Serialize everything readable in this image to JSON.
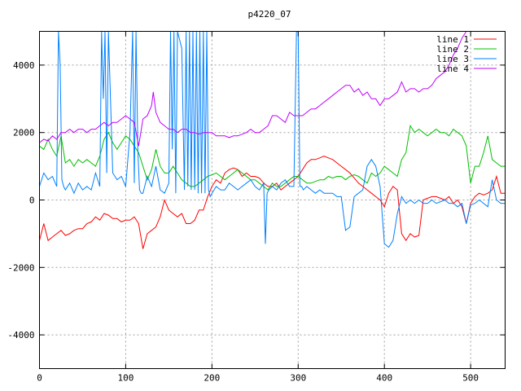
{
  "chart_data": {
    "type": "line",
    "title": "p4220_07",
    "xlim": [
      0,
      540
    ],
    "ylim": [
      -5000,
      5000
    ],
    "xticks": [
      0,
      100,
      200,
      300,
      400,
      500
    ],
    "yticks": [
      -4000,
      -2000,
      0,
      2000,
      4000
    ],
    "grid": true,
    "legend_position": "top-right",
    "series": [
      {
        "name": "line 1",
        "color": "#ff0000",
        "x": [
          0,
          5,
          10,
          15,
          20,
          25,
          30,
          35,
          40,
          45,
          50,
          55,
          60,
          65,
          70,
          75,
          80,
          85,
          90,
          95,
          100,
          105,
          110,
          115,
          120,
          125,
          130,
          135,
          140,
          145,
          150,
          155,
          160,
          165,
          170,
          175,
          180,
          185,
          190,
          195,
          200,
          205,
          210,
          215,
          220,
          225,
          230,
          235,
          240,
          245,
          250,
          255,
          260,
          265,
          270,
          275,
          280,
          285,
          290,
          295,
          300,
          305,
          310,
          315,
          320,
          325,
          330,
          335,
          340,
          345,
          350,
          355,
          360,
          365,
          370,
          375,
          380,
          385,
          390,
          395,
          400,
          405,
          410,
          415,
          420,
          425,
          430,
          435,
          440,
          445,
          450,
          455,
          460,
          465,
          470,
          475,
          480,
          485,
          490,
          495,
          500,
          505,
          510,
          515,
          520,
          525,
          530,
          535,
          540
        ],
        "y": [
          -1200,
          -700,
          -1200,
          -1100,
          -1000,
          -900,
          -1050,
          -1000,
          -900,
          -850,
          -850,
          -700,
          -650,
          -500,
          -600,
          -400,
          -450,
          -550,
          -550,
          -650,
          -600,
          -600,
          -500,
          -700,
          -1450,
          -1000,
          -900,
          -800,
          -500,
          0,
          -300,
          -400,
          -500,
          -400,
          -700,
          -700,
          -600,
          -300,
          -300,
          100,
          400,
          600,
          500,
          800,
          900,
          950,
          900,
          700,
          800,
          700,
          700,
          650,
          500,
          400,
          400,
          500,
          300,
          400,
          500,
          600,
          700,
          900,
          1100,
          1200,
          1200,
          1250,
          1300,
          1250,
          1200,
          1100,
          1000,
          900,
          800,
          650,
          500,
          400,
          300,
          200,
          100,
          0,
          -200,
          200,
          400,
          300,
          -1000,
          -1200,
          -1000,
          -1100,
          -1050,
          0,
          50,
          100,
          100,
          50,
          0,
          100,
          -100,
          0,
          -200,
          -700,
          -100,
          100,
          200,
          150,
          200,
          300,
          700,
          200,
          200
        ]
      },
      {
        "name": "line 2",
        "color": "#00c000",
        "x": [
          0,
          5,
          10,
          15,
          20,
          25,
          30,
          35,
          40,
          45,
          50,
          55,
          60,
          65,
          70,
          75,
          80,
          85,
          90,
          95,
          100,
          105,
          110,
          115,
          120,
          125,
          130,
          135,
          140,
          145,
          150,
          155,
          160,
          165,
          170,
          175,
          180,
          185,
          190,
          195,
          200,
          205,
          210,
          215,
          220,
          225,
          230,
          235,
          240,
          245,
          250,
          255,
          260,
          265,
          270,
          275,
          280,
          285,
          290,
          295,
          300,
          305,
          310,
          315,
          320,
          325,
          330,
          335,
          340,
          345,
          350,
          355,
          360,
          365,
          370,
          375,
          380,
          385,
          390,
          395,
          400,
          405,
          410,
          415,
          420,
          425,
          430,
          435,
          440,
          445,
          450,
          455,
          460,
          465,
          470,
          475,
          480,
          485,
          490,
          495,
          500,
          505,
          510,
          515,
          520,
          525,
          530,
          535,
          540
        ],
        "y": [
          1600,
          1500,
          1800,
          1500,
          1300,
          1900,
          1100,
          1200,
          1000,
          1200,
          1100,
          1200,
          1100,
          1000,
          1300,
          1800,
          2000,
          1700,
          1500,
          1700,
          1900,
          1800,
          1600,
          1400,
          1000,
          600,
          900,
          1500,
          1000,
          800,
          800,
          1000,
          800,
          600,
          500,
          400,
          400,
          500,
          600,
          700,
          750,
          800,
          700,
          600,
          700,
          800,
          900,
          800,
          700,
          600,
          600,
          500,
          400,
          300,
          500,
          400,
          400,
          500,
          600,
          700,
          700,
          600,
          500,
          500,
          550,
          600,
          600,
          700,
          650,
          700,
          700,
          600,
          700,
          750,
          700,
          600,
          500,
          800,
          700,
          800,
          1000,
          900,
          800,
          700,
          1200,
          1400,
          2200,
          2000,
          2100,
          2000,
          1900,
          2000,
          2100,
          2000,
          2000,
          1900,
          2100,
          2000,
          1900,
          1600,
          500,
          1000,
          1000,
          1400,
          1900,
          1200,
          1100,
          1000,
          1000
        ]
      },
      {
        "name": "line 3",
        "color": "#0080ff",
        "x": [
          0,
          5,
          10,
          15,
          20,
          22,
          24,
          26,
          28,
          30,
          35,
          40,
          45,
          50,
          55,
          60,
          65,
          70,
          72,
          74,
          76,
          78,
          80,
          85,
          90,
          95,
          100,
          105,
          108,
          110,
          112,
          114,
          116,
          118,
          120,
          125,
          130,
          135,
          140,
          145,
          150,
          152,
          154,
          156,
          158,
          160,
          165,
          168,
          170,
          172,
          174,
          176,
          178,
          180,
          182,
          184,
          186,
          188,
          190,
          192,
          194,
          196,
          198,
          200,
          205,
          210,
          215,
          220,
          225,
          230,
          235,
          240,
          245,
          250,
          255,
          260,
          262,
          264,
          266,
          270,
          275,
          280,
          285,
          290,
          295,
          298,
          300,
          302,
          304,
          306,
          310,
          315,
          320,
          325,
          330,
          335,
          340,
          345,
          350,
          355,
          360,
          365,
          370,
          375,
          380,
          385,
          390,
          395,
          400,
          405,
          410,
          415,
          420,
          425,
          430,
          435,
          440,
          445,
          450,
          455,
          460,
          465,
          470,
          475,
          480,
          485,
          490,
          495,
          500,
          505,
          510,
          515,
          520,
          525,
          530,
          535,
          540
        ],
        "y": [
          400,
          800,
          600,
          700,
          400,
          5000,
          4000,
          600,
          400,
          300,
          500,
          200,
          500,
          300,
          400,
          300,
          800,
          400,
          5000,
          3000,
          5000,
          800,
          5000,
          800,
          600,
          700,
          400,
          2000,
          5000,
          500,
          5000,
          1500,
          300,
          200,
          200,
          700,
          400,
          1000,
          300,
          200,
          500,
          5000,
          1500,
          5000,
          200,
          5000,
          4500,
          300,
          5000,
          400,
          5000,
          300,
          5000,
          300,
          5000,
          200,
          5000,
          200,
          5000,
          200,
          5000,
          300,
          100,
          200,
          400,
          300,
          300,
          500,
          400,
          300,
          400,
          500,
          600,
          400,
          300,
          500,
          -1300,
          200,
          300,
          400,
          300,
          500,
          600,
          400,
          400,
          5000,
          5000,
          400,
          400,
          300,
          400,
          300,
          200,
          300,
          200,
          200,
          200,
          100,
          100,
          -900,
          -800,
          100,
          200,
          300,
          1000,
          1200,
          1000,
          400,
          -1300,
          -1400,
          -1200,
          -400,
          100,
          -100,
          0,
          -100,
          0,
          -100,
          -100,
          0,
          -100,
          -50,
          0,
          -100,
          -100,
          -200,
          -100,
          -700,
          -150,
          -100,
          0,
          -100,
          -200,
          600,
          0,
          -100,
          -100
        ]
      },
      {
        "name": "line 4",
        "color": "#c000ff",
        "x": [
          0,
          5,
          10,
          15,
          20,
          25,
          30,
          35,
          40,
          45,
          50,
          55,
          60,
          65,
          70,
          75,
          80,
          85,
          90,
          95,
          100,
          105,
          110,
          115,
          120,
          125,
          130,
          132,
          135,
          140,
          145,
          150,
          155,
          160,
          165,
          170,
          175,
          180,
          185,
          190,
          195,
          200,
          205,
          210,
          215,
          220,
          225,
          230,
          235,
          240,
          245,
          250,
          255,
          260,
          265,
          270,
          275,
          280,
          285,
          290,
          295,
          300,
          305,
          310,
          315,
          320,
          325,
          330,
          335,
          340,
          345,
          350,
          355,
          360,
          365,
          370,
          375,
          380,
          385,
          390,
          395,
          400,
          405,
          410,
          415,
          420,
          425,
          430,
          435,
          440,
          445,
          450,
          455,
          460,
          465,
          470,
          475,
          480,
          485,
          490,
          495
        ],
        "y": [
          1700,
          1800,
          1750,
          1900,
          1800,
          2000,
          2000,
          2100,
          2000,
          2100,
          2100,
          2000,
          2100,
          2100,
          2200,
          2300,
          2200,
          2300,
          2300,
          2400,
          2500,
          2400,
          2300,
          1600,
          2400,
          2500,
          2800,
          3200,
          2600,
          2300,
          2200,
          2100,
          2100,
          2000,
          2100,
          2100,
          2000,
          2000,
          1950,
          2000,
          2000,
          2000,
          1900,
          1900,
          1900,
          1850,
          1900,
          1900,
          1950,
          2000,
          2100,
          2000,
          2000,
          2100,
          2200,
          2500,
          2500,
          2400,
          2300,
          2600,
          2500,
          2500,
          2500,
          2600,
          2700,
          2700,
          2800,
          2900,
          3000,
          3100,
          3200,
          3300,
          3400,
          3400,
          3200,
          3300,
          3100,
          3200,
          3000,
          3000,
          2800,
          3000,
          3000,
          3100,
          3200,
          3500,
          3200,
          3300,
          3300,
          3200,
          3300,
          3300,
          3400,
          3600,
          3700,
          3800,
          4000,
          4300,
          4500,
          4800,
          5000
        ]
      }
    ]
  }
}
